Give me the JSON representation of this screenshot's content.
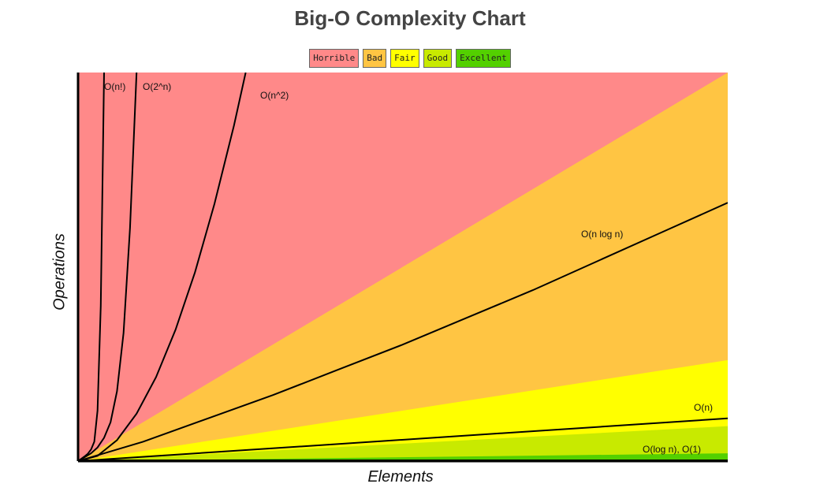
{
  "chart_data": {
    "type": "area",
    "title": "Big-O Complexity Chart",
    "xlabel": "Elements",
    "ylabel": "Operations",
    "xlim": [
      0,
      100
    ],
    "ylim": [
      0,
      100
    ],
    "grid": false,
    "legend_position": "top-center",
    "legend": [
      {
        "label": "Horrible",
        "color": "#ff8989"
      },
      {
        "label": "Bad",
        "color": "#ffc543"
      },
      {
        "label": "Fair",
        "color": "#ffff00"
      },
      {
        "label": "Good",
        "color": "#c8ea00"
      },
      {
        "label": "Excellent",
        "color": "#53d000"
      }
    ],
    "zones": [
      {
        "zone": "Excellent",
        "color": "#53d000",
        "upper_y": [
          0,
          2
        ]
      },
      {
        "zone": "Good",
        "color": "#c8ea00",
        "upper_y": [
          0,
          9
        ]
      },
      {
        "zone": "Fair",
        "color": "#ffff00",
        "upper_y": [
          0,
          26
        ]
      },
      {
        "zone": "Bad",
        "color": "#ffc543",
        "upper_y": [
          0,
          100
        ]
      },
      {
        "zone": "Horrible",
        "color": "#ff8989",
        "upper_y": [
          0,
          100
        ]
      }
    ],
    "series": [
      {
        "name": "O(n!)",
        "x": [
          0,
          0.5,
          1,
          1.5,
          2,
          2.5,
          3,
          3.5,
          4
        ],
        "y": [
          0,
          0.6,
          1.2,
          1.9,
          3,
          5,
          13,
          40,
          100
        ]
      },
      {
        "name": "O(2^n)",
        "x": [
          0,
          1,
          2,
          3,
          4,
          5,
          6,
          7,
          8,
          9
        ],
        "y": [
          0,
          1,
          2,
          3.5,
          6,
          10,
          18,
          33,
          60,
          100
        ]
      },
      {
        "name": "O(n^2)",
        "x": [
          0,
          3,
          6,
          9,
          12,
          15,
          18,
          21,
          24,
          25.8
        ],
        "y": [
          0,
          1.35,
          5.4,
          12.2,
          21.6,
          33.8,
          48.6,
          66.2,
          86.4,
          100
        ]
      },
      {
        "name": "O(n log n)",
        "x": [
          0,
          10,
          20,
          30,
          40,
          50,
          60,
          70,
          80,
          90,
          100
        ],
        "y": [
          0,
          5,
          11,
          17,
          23.5,
          30,
          37,
          44,
          51.5,
          59,
          66.5
        ]
      },
      {
        "name": "O(n)",
        "x": [
          0,
          100
        ],
        "y": [
          0,
          11
        ]
      },
      {
        "name": "O(log n), O(1)",
        "x": [
          0,
          100
        ],
        "y": [
          0.2,
          0.2
        ]
      }
    ]
  }
}
